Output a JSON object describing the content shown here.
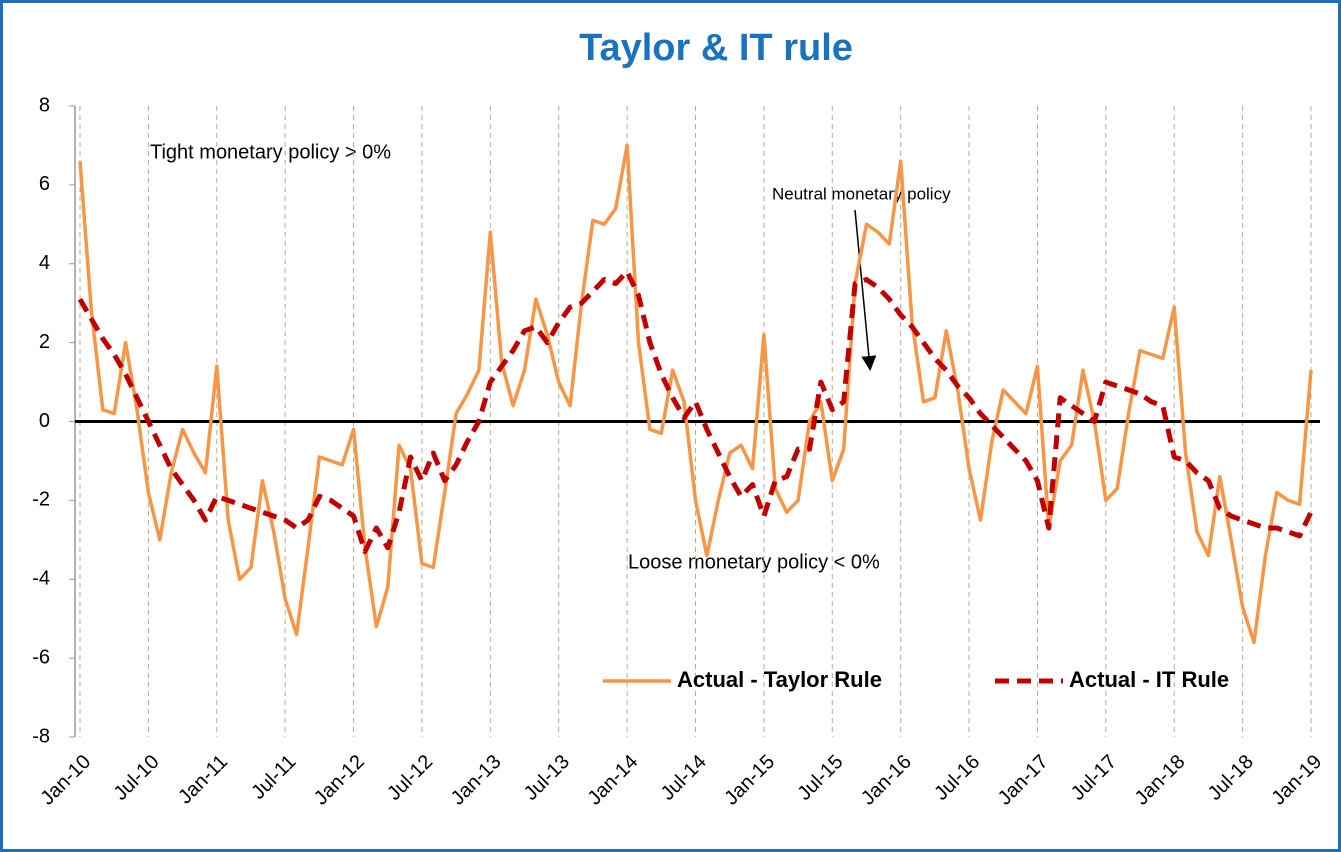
{
  "chart_data": {
    "type": "line",
    "title": "Taylor & IT rule",
    "annotations": [
      "Tight monetary policy >  0%",
      "Neutral monetary policy",
      "Loose monetary policy < 0%"
    ],
    "categories": [
      "Jan-10",
      null,
      null,
      null,
      null,
      null,
      "Jul-10",
      null,
      null,
      null,
      null,
      null,
      "Jan-11",
      null,
      null,
      null,
      null,
      null,
      "Jul-11",
      null,
      null,
      null,
      null,
      null,
      "Jan-12",
      null,
      null,
      null,
      null,
      null,
      "Jul-12",
      null,
      null,
      null,
      null,
      null,
      "Jan-13",
      null,
      null,
      null,
      null,
      null,
      "Jul-13",
      null,
      null,
      null,
      null,
      null,
      "Jan-14",
      null,
      null,
      null,
      null,
      null,
      "Jul-14",
      null,
      null,
      null,
      null,
      null,
      "Jan-15",
      null,
      null,
      null,
      null,
      null,
      "Jul-15",
      null,
      null,
      null,
      null,
      null,
      "Jan-16",
      null,
      null,
      null,
      null,
      null,
      "Jul-16",
      null,
      null,
      null,
      null,
      null,
      "Jan-17",
      null,
      null,
      null,
      null,
      null,
      "Jul-17",
      null,
      null,
      null,
      null,
      null,
      "Jan-18",
      null,
      null,
      null,
      null,
      null,
      "Jul-18",
      null,
      null,
      null,
      null,
      null,
      "Jan-19"
    ],
    "series": [
      {
        "name": "Actual - Taylor Rule",
        "color": "#f79646",
        "dash": false,
        "values": [
          6.6,
          2.8,
          0.3,
          0.2,
          2.0,
          0.3,
          -1.8,
          -3.0,
          -1.3,
          -0.2,
          -0.8,
          -1.3,
          1.4,
          -2.5,
          -4.0,
          -3.7,
          -1.5,
          -2.8,
          -4.5,
          -5.4,
          -3.2,
          -0.9,
          -1.0,
          -1.1,
          -0.2,
          -3.2,
          -5.2,
          -4.2,
          -0.6,
          -1.2,
          -3.6,
          -3.7,
          -1.8,
          0.2,
          0.7,
          1.3,
          4.8,
          1.5,
          0.4,
          1.3,
          3.1,
          2.2,
          1.0,
          0.4,
          3.0,
          5.1,
          5.0,
          5.4,
          7.0,
          2.0,
          -0.2,
          -0.3,
          1.3,
          0.5,
          -2.0,
          -3.4,
          -2.0,
          -0.8,
          -0.6,
          -1.2,
          2.2,
          -1.7,
          -2.3,
          -2.0,
          0.0,
          0.5,
          -1.5,
          -0.7,
          3.5,
          5.0,
          4.8,
          4.5,
          6.6,
          2.5,
          0.5,
          0.6,
          2.3,
          0.8,
          -1.2,
          -2.5,
          -0.5,
          0.8,
          0.5,
          0.2,
          1.4,
          -2.7,
          -1.0,
          -0.6,
          1.3,
          0.0,
          -2.0,
          -1.7,
          0.2,
          1.8,
          1.7,
          1.6,
          2.9,
          -0.8,
          -2.8,
          -3.4,
          -1.4,
          -3.0,
          -4.7,
          -5.6,
          -3.4,
          -1.8,
          -2.0,
          -2.1,
          1.3
        ]
      },
      {
        "name": "Actual - IT Rule",
        "color": "#c00000",
        "dash": true,
        "values": [
          3.1,
          2.6,
          2.1,
          1.7,
          1.2,
          0.6,
          0.0,
          -0.6,
          -1.2,
          -1.6,
          -2.0,
          -2.5,
          -1.9,
          -2.0,
          -2.1,
          -2.2,
          -2.3,
          -2.4,
          -2.5,
          -2.7,
          -2.5,
          -1.9,
          -2.0,
          -2.2,
          -2.4,
          -3.3,
          -2.7,
          -3.2,
          -2.3,
          -0.9,
          -1.5,
          -0.8,
          -1.5,
          -1.1,
          -0.5,
          0.0,
          1.0,
          1.4,
          1.8,
          2.3,
          2.4,
          2.0,
          2.5,
          2.9,
          3.0,
          3.3,
          3.6,
          3.5,
          3.8,
          3.2,
          2.0,
          1.2,
          0.6,
          0.1,
          0.5,
          -0.2,
          -0.8,
          -1.4,
          -1.9,
          -1.6,
          -2.4,
          -1.5,
          -1.4,
          -0.7,
          -0.7,
          1.0,
          0.3,
          0.5,
          3.5,
          3.6,
          3.4,
          3.1,
          2.7,
          2.4,
          2.0,
          1.6,
          1.3,
          0.9,
          0.6,
          0.2,
          -0.1,
          -0.4,
          -0.7,
          -1.0,
          -1.5,
          -2.7,
          0.6,
          0.4,
          0.2,
          0.0,
          1.0,
          0.9,
          0.8,
          0.7,
          0.5,
          0.4,
          -0.9,
          -1.0,
          -1.3,
          -1.5,
          -2.2,
          -2.4,
          -2.5,
          -2.6,
          -2.7,
          -2.7,
          -2.8,
          -2.9,
          -2.3
        ]
      }
    ],
    "ylim": [
      -8,
      8
    ],
    "yticks": [
      -8,
      -6,
      -4,
      -2,
      0,
      2,
      4,
      6,
      8
    ],
    "grid": "x-dashed",
    "legend": "lower right"
  }
}
